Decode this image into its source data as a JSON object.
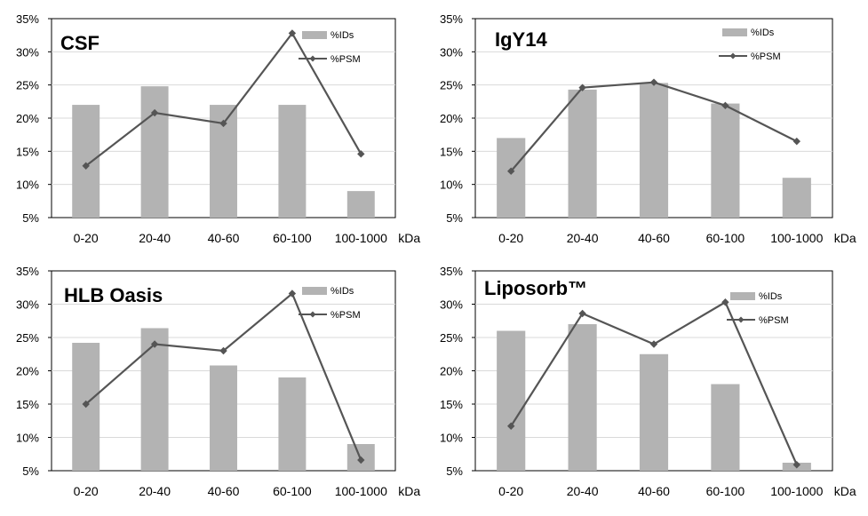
{
  "figure": {
    "unit_label": "kDa",
    "colors": {
      "bar": "#b3b3b3",
      "line": "#555555",
      "marker": "#555555"
    }
  },
  "chart_data": [
    {
      "type": "bar",
      "title": "CSF",
      "categories": [
        "0-20",
        "20-40",
        "40-60",
        "60-100",
        "100-1000"
      ],
      "ylim": [
        5,
        35
      ],
      "yticks": [
        "5%",
        "10%",
        "15%",
        "20%",
        "25%",
        "30%",
        "35%"
      ],
      "legend": {
        "placement": "top-right",
        "bar_label": "%IDs",
        "line_label": "%PSM"
      },
      "series": [
        {
          "name": "%IDs",
          "type": "bar",
          "values": [
            22,
            24.8,
            22,
            22,
            9
          ]
        },
        {
          "name": "%PSM",
          "type": "line",
          "values": [
            12.8,
            20.8,
            19.2,
            32.8,
            14.6
          ]
        }
      ]
    },
    {
      "type": "bar",
      "title": "IgY14",
      "categories": [
        "0-20",
        "20-40",
        "40-60",
        "60-100",
        "100-1000"
      ],
      "ylim": [
        5,
        35
      ],
      "yticks": [
        "5%",
        "10%",
        "15%",
        "20%",
        "25%",
        "30%",
        "35%"
      ],
      "legend": {
        "placement": "top-right",
        "bar_label": "%IDs",
        "line_label": "%PSM"
      },
      "series": [
        {
          "name": "%IDs",
          "type": "bar",
          "values": [
            17,
            24.3,
            25.3,
            22.2,
            11
          ]
        },
        {
          "name": "%PSM",
          "type": "line",
          "values": [
            12,
            24.6,
            25.4,
            21.9,
            16.5
          ]
        }
      ]
    },
    {
      "type": "bar",
      "title": "HLB Oasis",
      "categories": [
        "0-20",
        "20-40",
        "40-60",
        "60-100",
        "100-1000"
      ],
      "ylim": [
        5,
        35
      ],
      "yticks": [
        "5%",
        "10%",
        "15%",
        "20%",
        "25%",
        "30%",
        "35%"
      ],
      "legend": {
        "placement": "top-right",
        "bar_label": "%IDs",
        "line_label": "%PSM"
      },
      "series": [
        {
          "name": "%IDs",
          "type": "bar",
          "values": [
            24.2,
            26.4,
            20.8,
            19,
            9
          ]
        },
        {
          "name": "%PSM",
          "type": "line",
          "values": [
            15,
            24,
            23,
            31.6,
            6.6
          ]
        }
      ]
    },
    {
      "type": "bar",
      "title": "Liposorb™",
      "categories": [
        "0-20",
        "20-40",
        "40-60",
        "60-100",
        "100-1000"
      ],
      "ylim": [
        5,
        35
      ],
      "yticks": [
        "5%",
        "10%",
        "15%",
        "20%",
        "25%",
        "30%",
        "35%"
      ],
      "legend": {
        "placement": "top-right",
        "bar_label": "%IDs",
        "line_label": "%PSM"
      },
      "series": [
        {
          "name": "%IDs",
          "type": "bar",
          "values": [
            26,
            27,
            22.5,
            18,
            6.2
          ]
        },
        {
          "name": "%PSM",
          "type": "line",
          "values": [
            11.7,
            28.6,
            24,
            30.3,
            5.9
          ]
        }
      ]
    }
  ]
}
